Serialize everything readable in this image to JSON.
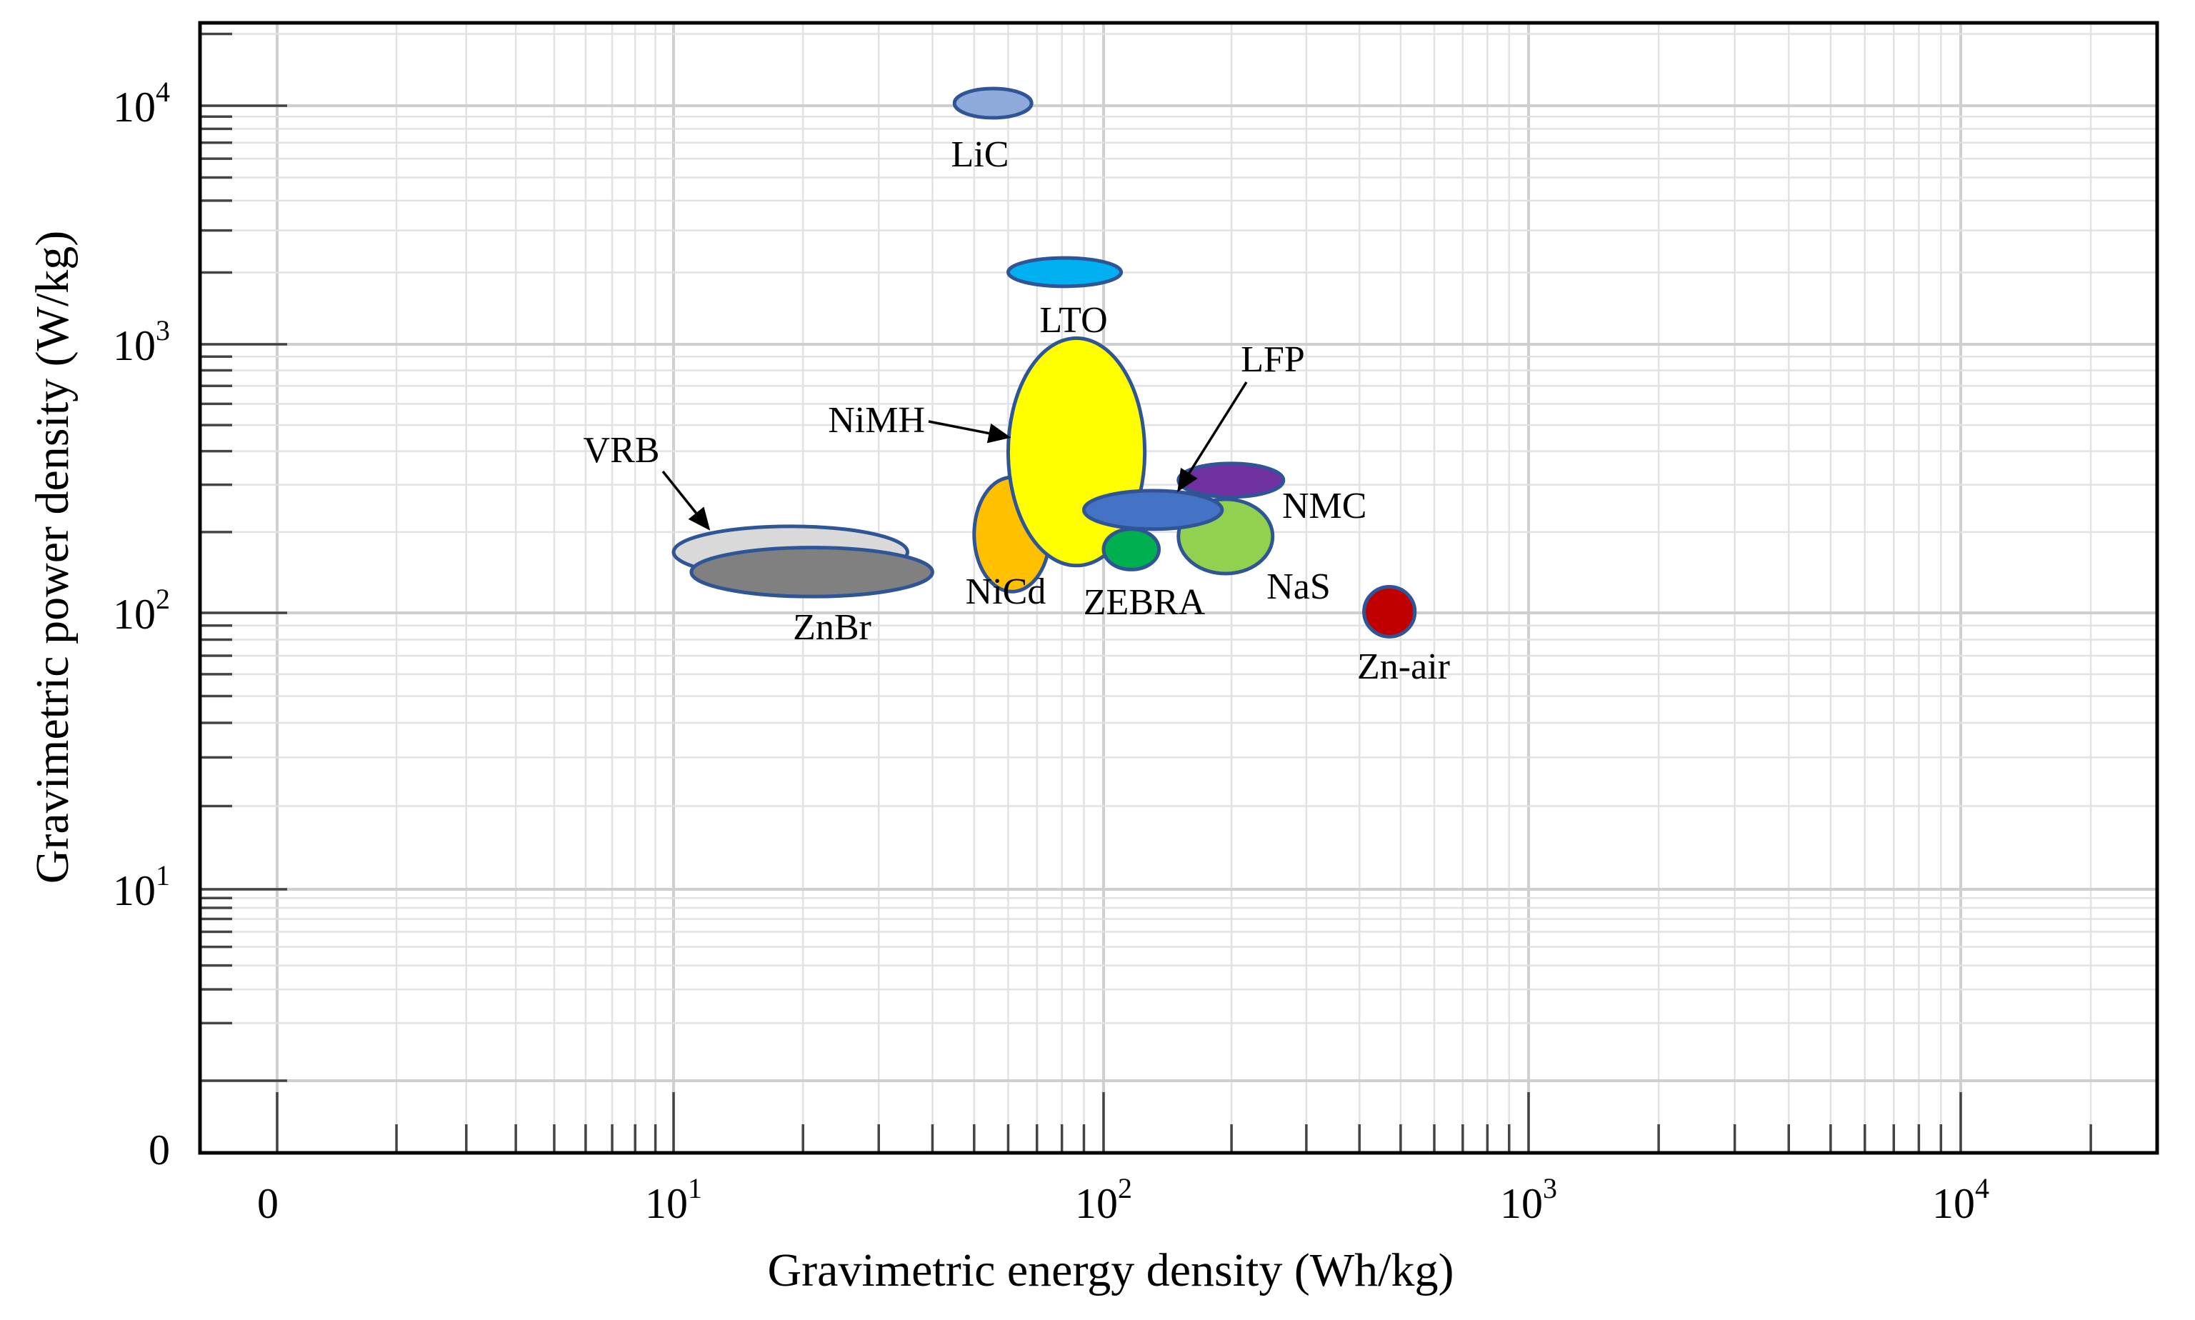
{
  "chart_data": {
    "type": "scatter",
    "title": "",
    "xlabel": "Gravimetric energy density (Wh/kg)",
    "ylabel": "Gravimetric power density (W/kg)",
    "x_scale": "log",
    "y_scale": "log",
    "xlim": [
      1,
      30000
    ],
    "ylim": [
      1,
      22000
    ],
    "grid": true,
    "x_ticks": [
      {
        "value": 1,
        "base": "0",
        "exp": ""
      },
      {
        "value": 10,
        "base": "10",
        "exp": "1"
      },
      {
        "value": 100,
        "base": "10",
        "exp": "2"
      },
      {
        "value": 1000,
        "base": "10",
        "exp": "3"
      },
      {
        "value": 10000,
        "base": "10",
        "exp": "4"
      }
    ],
    "y_ticks": [
      {
        "value": 1,
        "base": "0",
        "exp": ""
      },
      {
        "value": 10,
        "base": "10",
        "exp": "1"
      },
      {
        "value": 100,
        "base": "10",
        "exp": "2"
      },
      {
        "value": 1000,
        "base": "10",
        "exp": "3"
      },
      {
        "value": 10000,
        "base": "10",
        "exp": "4"
      }
    ],
    "series": [
      {
        "name": "LiC",
        "energy": [
          45,
          68
        ],
        "power": [
          8900,
          11800
        ],
        "color": "#8eaadb",
        "label_anchor": "below"
      },
      {
        "name": "LTO",
        "energy": [
          60,
          110
        ],
        "power": [
          1750,
          2300
        ],
        "color": "#00b0f0",
        "label_anchor": "below"
      },
      {
        "name": "NiMH",
        "energy": [
          60,
          125
        ],
        "power": [
          150,
          1060
        ],
        "color": "#ffff00",
        "label_anchor": "arrow-left"
      },
      {
        "name": "LFP",
        "energy": [
          90,
          190
        ],
        "power": [
          205,
          285
        ],
        "color": "#4472c4",
        "label_anchor": "arrow-up"
      },
      {
        "name": "NMC",
        "energy": [
          150,
          265
        ],
        "power": [
          270,
          360
        ],
        "color": "#7030a0",
        "label_anchor": "right"
      },
      {
        "name": "NiCd",
        "energy": [
          50,
          75
        ],
        "power": [
          120,
          320
        ],
        "color": "#ffc000",
        "label_anchor": "below"
      },
      {
        "name": "ZEBRA",
        "energy": [
          100,
          135
        ],
        "power": [
          145,
          205
        ],
        "color": "#00b050",
        "label_anchor": "below"
      },
      {
        "name": "NaS",
        "energy": [
          150,
          250
        ],
        "power": [
          140,
          265
        ],
        "color": "#92d050",
        "label_anchor": "below-right"
      },
      {
        "name": "VRB",
        "energy": [
          10,
          35
        ],
        "power": [
          135,
          210
        ],
        "color": "#d9d9d9",
        "label_anchor": "arrow-left"
      },
      {
        "name": "ZnBr",
        "energy": [
          11,
          40
        ],
        "power": [
          115,
          175
        ],
        "color": "#808080",
        "label_anchor": "below"
      },
      {
        "name": "Zn-air",
        "energy": [
          410,
          540
        ],
        "power": [
          82,
          125
        ],
        "color": "#c00000",
        "label_anchor": "below"
      }
    ]
  }
}
